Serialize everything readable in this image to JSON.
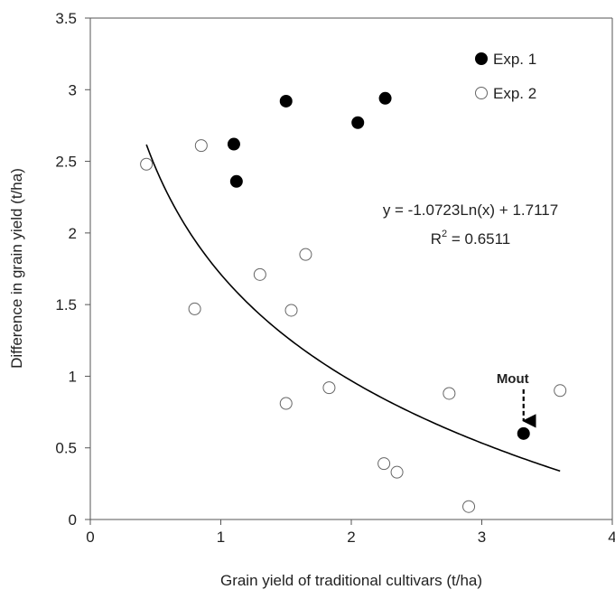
{
  "chart_data": {
    "type": "scatter",
    "title": "",
    "xlabel": "Grain yield of traditional cultivars (t/ha)",
    "ylabel": "Difference in grain yield (t/ha)",
    "xlim": [
      0,
      4
    ],
    "ylim": [
      0,
      3.5
    ],
    "x_ticks": [
      "0",
      "1",
      "2",
      "3",
      "4"
    ],
    "y_ticks": [
      "0",
      "0.5",
      "1",
      "1.5",
      "2",
      "2.5",
      "3",
      "3.5"
    ],
    "grid": false,
    "legend_position": "top-right",
    "series": [
      {
        "name": "Exp. 1",
        "marker": "filled-circle",
        "color": "#000000",
        "points": [
          {
            "x": 1.1,
            "y": 2.62
          },
          {
            "x": 1.12,
            "y": 2.36
          },
          {
            "x": 1.5,
            "y": 2.92
          },
          {
            "x": 2.05,
            "y": 2.77
          },
          {
            "x": 2.26,
            "y": 2.94
          },
          {
            "x": 3.32,
            "y": 0.6
          }
        ]
      },
      {
        "name": "Exp. 2",
        "marker": "open-circle",
        "color": "#000000",
        "points": [
          {
            "x": 0.43,
            "y": 2.48
          },
          {
            "x": 0.85,
            "y": 2.61
          },
          {
            "x": 0.8,
            "y": 1.47
          },
          {
            "x": 1.3,
            "y": 1.71
          },
          {
            "x": 1.54,
            "y": 1.46
          },
          {
            "x": 1.65,
            "y": 1.85
          },
          {
            "x": 1.5,
            "y": 0.81
          },
          {
            "x": 1.83,
            "y": 0.92
          },
          {
            "x": 2.25,
            "y": 0.39
          },
          {
            "x": 2.35,
            "y": 0.33
          },
          {
            "x": 2.75,
            "y": 0.88
          },
          {
            "x": 2.9,
            "y": 0.09
          },
          {
            "x": 3.6,
            "y": 0.9
          }
        ]
      }
    ],
    "trendline": {
      "type": "logarithmic",
      "a": -1.0723,
      "b": 1.7117,
      "x_range": [
        0.43,
        3.6
      ]
    },
    "equation_line1": "y = -1.0723Ln(x) + 1.7117",
    "r2_prefix": "R",
    "r2_sup": "2",
    "r2_value": " = 0.6511",
    "annotations": [
      {
        "text": "Mout",
        "x": 3.32,
        "y": 0.6
      }
    ]
  }
}
